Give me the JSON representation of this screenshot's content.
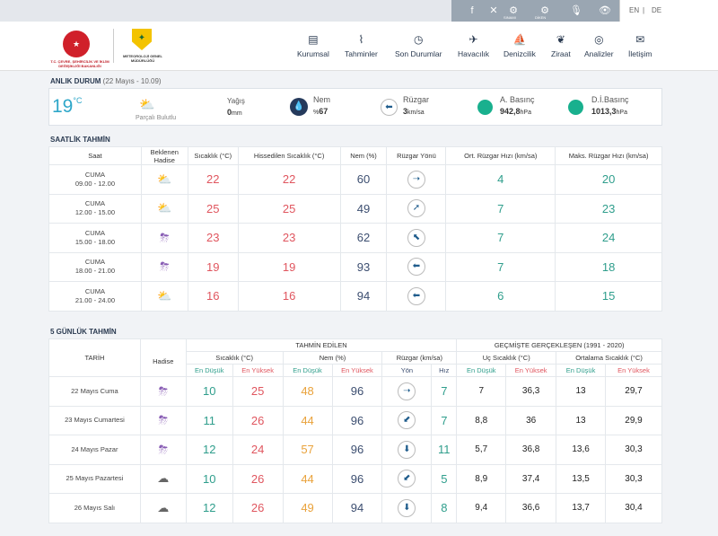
{
  "topbar": {
    "icons": [
      {
        "name": "facebook-icon",
        "glyph": "f",
        "label": ""
      },
      {
        "name": "x-icon",
        "glyph": "✕",
        "label": ""
      },
      {
        "name": "sensor-icon",
        "glyph": "⚙",
        "label": "SINAMI"
      },
      {
        "name": "contrast-icon",
        "glyph": "⚙",
        "label": "DİKEN"
      },
      {
        "name": "microphone-icon",
        "glyph": "🎙",
        "label": ""
      },
      {
        "name": "eye-icon",
        "glyph": "👁",
        "label": ""
      }
    ],
    "lang_en": "EN",
    "lang_sep": "|",
    "lang_de": "DE"
  },
  "logos": {
    "ministry_text": "T.C. ÇEVRE, ŞEHİRCİLİK VE İKLİM DEĞİŞİKLİĞİ BAKANLIĞI",
    "mgm_text": "METEOROLOJİ GENEL MÜDÜRLÜĞÜ"
  },
  "nav": [
    {
      "label": "Kurumsal",
      "icon": "building-icon",
      "glyph": "▤"
    },
    {
      "label": "Tahminler",
      "icon": "chart-icon",
      "glyph": "⌇"
    },
    {
      "label": "Son Durumlar",
      "icon": "clock-icon",
      "glyph": "◷"
    },
    {
      "label": "Havacılık",
      "icon": "plane-icon",
      "glyph": "✈"
    },
    {
      "label": "Denizcilik",
      "icon": "sailboat-icon",
      "glyph": "⛵"
    },
    {
      "label": "Ziraat",
      "icon": "leaf-icon",
      "glyph": "❦"
    },
    {
      "label": "Analizler",
      "icon": "analysis-icon",
      "glyph": "◎"
    },
    {
      "label": "İletişim",
      "icon": "mail-icon",
      "glyph": "✉"
    }
  ],
  "current": {
    "title": "ANLIK DURUM",
    "subtitle": "(22 Mayıs - 10.09)",
    "temp": "19",
    "unit": "°C",
    "condition": "Parçalı Bulutlu",
    "rain_label": "Yağış",
    "rain_value": "0",
    "rain_unit": "mm",
    "humidity_label": "Nem",
    "humidity_prefix": "%",
    "humidity_value": "67",
    "wind_label": "Rüzgar",
    "wind_value": "3",
    "wind_unit": "km/sa",
    "pressure_label": "A. Basınç",
    "pressure_value": "942,8",
    "pressure_unit": "hPa",
    "sea_pressure_label": "D.İ.Basınç",
    "sea_pressure_value": "1013,3",
    "sea_pressure_unit": "hPa"
  },
  "hourly": {
    "title": "SAATLİK TAHMİN",
    "headers": [
      "Saat",
      "Beklenen Hadise",
      "Sıcaklık (°C)",
      "Hissedilen Sıcaklık (°C)",
      "Nem (%)",
      "Rüzgar Yönü",
      "Ort. Rüzgar Hızı (km/sa)",
      "Maks. Rüzgar Hızı (km/sa)"
    ],
    "rows": [
      {
        "day": "CUMA",
        "time": "09.00 - 12.00",
        "icon": "partly-cloudy-icon",
        "glyph": "⛅",
        "temp": "22",
        "feels": "22",
        "humidity": "60",
        "dir": "➝",
        "avg": "4",
        "max": "20"
      },
      {
        "day": "CUMA",
        "time": "12.00 - 15.00",
        "icon": "partly-cloudy-icon",
        "glyph": "⛅",
        "temp": "25",
        "feels": "25",
        "humidity": "49",
        "dir": "➚",
        "avg": "7",
        "max": "23"
      },
      {
        "day": "CUMA",
        "time": "15.00 - 18.00",
        "icon": "thunderstorm-icon",
        "glyph": "⛈",
        "temp": "23",
        "feels": "23",
        "humidity": "62",
        "dir": "⬉",
        "avg": "7",
        "max": "24"
      },
      {
        "day": "CUMA",
        "time": "18.00 - 21.00",
        "icon": "thunderstorm-icon",
        "glyph": "⛈",
        "temp": "19",
        "feels": "19",
        "humidity": "93",
        "dir": "⬅",
        "avg": "7",
        "max": "18"
      },
      {
        "day": "CUMA",
        "time": "21.00 - 24.00",
        "icon": "partly-cloudy-icon",
        "glyph": "⛅",
        "temp": "16",
        "feels": "16",
        "humidity": "94",
        "dir": "⬅",
        "avg": "6",
        "max": "15"
      }
    ]
  },
  "daily": {
    "title": "5 GÜNLÜK TAHMİN",
    "h_date": "TARİH",
    "h_event": "Hadise",
    "h_forecast": "TAHMİN EDİLEN",
    "h_past": "GEÇMİŞTE GERÇEKLEŞEN (1991 - 2020)",
    "h_temp": "Sıcaklık (°C)",
    "h_hum": "Nem (%)",
    "h_wind": "Rüzgar (km/sa)",
    "h_extreme": "Uç Sıcaklık (°C)",
    "h_avg": "Ortalama Sıcaklık (°C)",
    "h_min": "En Düşük",
    "h_max": "En Yüksek",
    "h_dir": "Yön",
    "h_speed": "Hız",
    "rows": [
      {
        "date": "22 Mayıs Cuma",
        "icon": "thunderstorm-icon",
        "glyph": "⛈",
        "tmin": "10",
        "tmax": "25",
        "hmin": "48",
        "hmax": "96",
        "dir": "➝",
        "speed": "7",
        "emin": "7",
        "emax": "36,3",
        "amin": "13",
        "amax": "29,7"
      },
      {
        "date": "23 Mayıs Cumartesi",
        "icon": "thunderstorm-icon",
        "glyph": "⛈",
        "tmin": "11",
        "tmax": "26",
        "hmin": "44",
        "hmax": "96",
        "dir": "⬋",
        "speed": "7",
        "emin": "8,8",
        "emax": "36",
        "amin": "13",
        "amax": "29,9"
      },
      {
        "date": "24 Mayıs Pazar",
        "icon": "thunderstorm-icon",
        "glyph": "⛈",
        "tmin": "12",
        "tmax": "24",
        "hmin": "57",
        "hmax": "96",
        "dir": "⬇",
        "speed": "11",
        "emin": "5,7",
        "emax": "36,8",
        "amin": "13,6",
        "amax": "30,3"
      },
      {
        "date": "25 Mayıs Pazartesi",
        "icon": "cloud-icon",
        "glyph": "☁",
        "tmin": "10",
        "tmax": "26",
        "hmin": "44",
        "hmax": "96",
        "dir": "⬋",
        "speed": "5",
        "emin": "8,9",
        "emax": "37,4",
        "amin": "13,5",
        "amax": "30,3"
      },
      {
        "date": "26 Mayıs Salı",
        "icon": "cloud-icon",
        "glyph": "☁",
        "tmin": "12",
        "tmax": "26",
        "hmin": "49",
        "hmax": "94",
        "dir": "⬇",
        "speed": "8",
        "emin": "9,4",
        "emax": "36,6",
        "amin": "13,7",
        "amax": "30,4"
      }
    ]
  }
}
